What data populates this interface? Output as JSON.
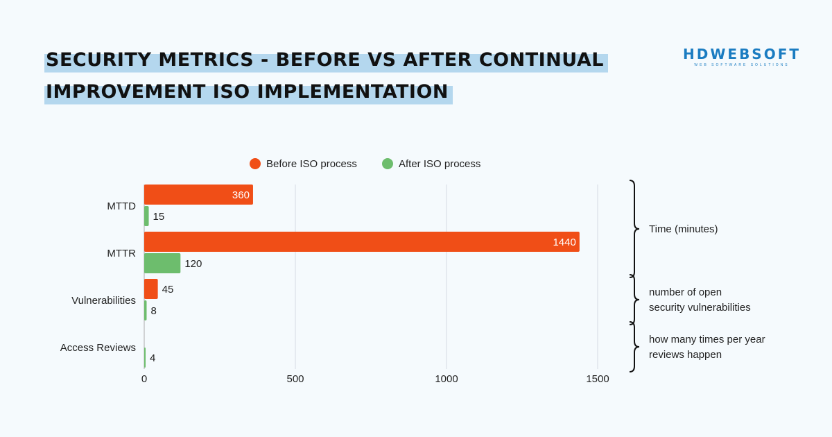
{
  "title_lines": [
    "SECURITY METRICS - BEFORE VS AFTER CONTINUAL",
    "IMPROVEMENT ISO IMPLEMENTATION"
  ],
  "logo": {
    "main": "HDWEBSOFT",
    "sub": "WEB SOFTWARE SOLUTIONS"
  },
  "chart_data": {
    "type": "bar",
    "orientation": "horizontal",
    "categories": [
      "MTTD",
      "MTTR",
      "Vulnerabilities",
      "Access Reviews"
    ],
    "series": [
      {
        "name": "Before ISO process",
        "color": "#f04e17",
        "values": [
          360,
          1440,
          45,
          null
        ]
      },
      {
        "name": "After ISO process",
        "color": "#6dbd6d",
        "values": [
          15,
          120,
          8,
          4
        ]
      }
    ],
    "xlim": [
      0,
      1500
    ],
    "xticks": [
      0,
      500,
      1000,
      1500
    ],
    "grid": true,
    "legend": "top",
    "annotations": [
      {
        "text": [
          "Time (minutes)"
        ],
        "categories": [
          "MTTD",
          "MTTR"
        ]
      },
      {
        "text": [
          "number of open",
          "security vulnerabilities"
        ],
        "categories": [
          "Vulnerabilities"
        ]
      },
      {
        "text": [
          "how many times per year",
          "reviews happen"
        ],
        "categories": [
          "Access Reviews"
        ]
      }
    ]
  }
}
